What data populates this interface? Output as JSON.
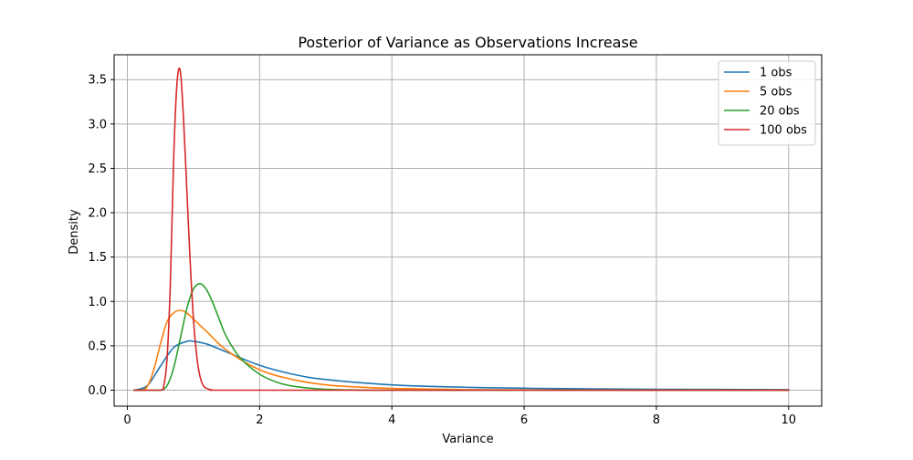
{
  "chart_data": {
    "type": "line",
    "title": "Posterior of Variance as Observations Increase",
    "xlabel": "Variance",
    "ylabel": "Density",
    "xlim": [
      -0.2,
      10.5
    ],
    "ylim": [
      -0.18,
      3.78
    ],
    "xticks": [
      0,
      2,
      4,
      6,
      8,
      10
    ],
    "yticks": [
      0.0,
      0.5,
      1.0,
      1.5,
      2.0,
      2.5,
      3.0,
      3.5
    ],
    "xtick_labels": [
      "0",
      "2",
      "4",
      "6",
      "8",
      "10"
    ],
    "ytick_labels": [
      "0.0",
      "0.5",
      "1.0",
      "1.5",
      "2.0",
      "2.5",
      "3.0",
      "3.5"
    ],
    "grid": true,
    "legend_position": "top-right",
    "series": [
      {
        "name": "1 obs",
        "color": "#1f77b4",
        "x": [
          0.1,
          0.3,
          0.5,
          0.7,
          0.9,
          1.0,
          1.2,
          1.5,
          2.0,
          2.5,
          3.0,
          4.0,
          5.0,
          6.0,
          7.0,
          8.0,
          9.0,
          10.0
        ],
        "y": [
          0.0,
          0.05,
          0.27,
          0.48,
          0.55,
          0.55,
          0.52,
          0.43,
          0.28,
          0.18,
          0.12,
          0.06,
          0.035,
          0.022,
          0.015,
          0.01,
          0.008,
          0.006
        ]
      },
      {
        "name": "5 obs",
        "color": "#ff7f0e",
        "x": [
          0.1,
          0.2,
          0.3,
          0.4,
          0.5,
          0.6,
          0.7,
          0.8,
          0.9,
          1.0,
          1.2,
          1.5,
          2.0,
          2.5,
          3.0,
          3.5,
          4.0,
          5.0,
          6.0,
          8.0,
          10.0
        ],
        "y": [
          0.0,
          0.0,
          0.04,
          0.23,
          0.52,
          0.77,
          0.87,
          0.9,
          0.87,
          0.8,
          0.66,
          0.45,
          0.23,
          0.12,
          0.06,
          0.035,
          0.02,
          0.007,
          0.003,
          0.0,
          0.0
        ]
      },
      {
        "name": "20 obs",
        "color": "#2ca02c",
        "x": [
          0.1,
          0.4,
          0.5,
          0.6,
          0.7,
          0.8,
          0.9,
          1.0,
          1.1,
          1.2,
          1.3,
          1.4,
          1.5,
          1.7,
          2.0,
          2.3,
          2.6,
          3.0,
          3.5,
          4.0,
          6.0,
          10.0
        ],
        "y": [
          0.0,
          0.0,
          0.0,
          0.05,
          0.25,
          0.58,
          0.92,
          1.14,
          1.2,
          1.13,
          0.97,
          0.78,
          0.6,
          0.37,
          0.18,
          0.08,
          0.035,
          0.01,
          0.002,
          0.0,
          0.0,
          0.0
        ]
      },
      {
        "name": "100 obs",
        "color": "#d62728",
        "x": [
          0.1,
          0.5,
          0.55,
          0.6,
          0.65,
          0.7,
          0.75,
          0.8,
          0.85,
          0.9,
          0.95,
          1.0,
          1.05,
          1.1,
          1.15,
          1.2,
          1.3,
          1.5,
          2.0,
          10.0
        ],
        "y": [
          0.0,
          0.0,
          0.05,
          0.35,
          1.2,
          2.6,
          3.45,
          3.6,
          3.05,
          2.25,
          1.45,
          0.8,
          0.38,
          0.15,
          0.05,
          0.02,
          0.0,
          0.0,
          0.0,
          0.0
        ]
      }
    ]
  }
}
